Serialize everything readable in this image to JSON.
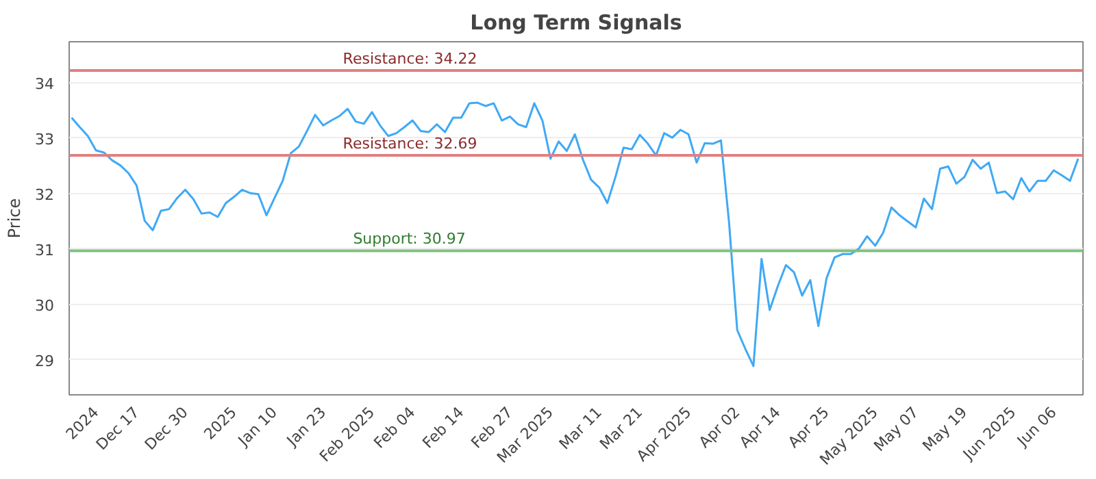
{
  "chart_data": {
    "type": "line",
    "title": "Long Term Signals",
    "ylabel": "Price",
    "categories": [
      null,
      null,
      null,
      "2024",
      null,
      null,
      null,
      null,
      "Dec 17",
      null,
      null,
      null,
      null,
      null,
      "Dec 30",
      null,
      null,
      null,
      null,
      null,
      "2025",
      null,
      null,
      null,
      null,
      "Jan 10",
      null,
      null,
      null,
      null,
      null,
      "Jan 23",
      null,
      null,
      null,
      null,
      null,
      "Feb 2025",
      null,
      null,
      null,
      null,
      "Feb 04",
      null,
      null,
      null,
      null,
      null,
      "Feb 14",
      null,
      null,
      null,
      null,
      null,
      "Feb 27",
      null,
      null,
      null,
      null,
      "Mar 2025",
      null,
      null,
      null,
      null,
      null,
      "Mar 11",
      null,
      null,
      null,
      null,
      "Mar 21",
      null,
      null,
      null,
      null,
      null,
      "Apr 2025",
      null,
      null,
      null,
      null,
      null,
      "Apr 02",
      null,
      null,
      null,
      null,
      "Apr 14",
      null,
      null,
      null,
      null,
      null,
      "Apr 25",
      null,
      null,
      null,
      null,
      null,
      "May 2025",
      null,
      null,
      null,
      null,
      "May 07",
      null,
      null,
      null,
      null,
      null,
      "May 19",
      null,
      null,
      null,
      null,
      null,
      "Jun 2025",
      null,
      null,
      null,
      null,
      "Jun 06",
      null,
      null,
      null
    ],
    "series": [
      {
        "color": "#3fa9f5",
        "values": [
          33.37,
          33.2,
          33.04,
          32.78,
          32.74,
          32.6,
          32.51,
          32.37,
          32.15,
          31.51,
          31.34,
          31.69,
          31.72,
          31.92,
          32.07,
          31.9,
          31.64,
          31.66,
          31.58,
          31.83,
          31.94,
          32.07,
          32.01,
          31.99,
          31.61,
          31.92,
          32.23,
          32.73,
          32.85,
          33.13,
          33.42,
          33.23,
          33.32,
          33.4,
          33.53,
          33.3,
          33.26,
          33.47,
          33.23,
          33.04,
          33.09,
          33.2,
          33.32,
          33.13,
          33.11,
          33.25,
          33.11,
          33.37,
          33.37,
          33.63,
          33.64,
          33.58,
          33.63,
          33.32,
          33.39,
          33.25,
          33.2,
          33.63,
          33.32,
          32.63,
          32.94,
          32.77,
          33.07,
          32.61,
          32.25,
          32.11,
          31.83,
          32.3,
          32.83,
          32.8,
          33.06,
          32.9,
          32.69,
          33.09,
          33.01,
          33.15,
          33.07,
          32.56,
          32.91,
          32.9,
          32.96,
          31.47,
          29.54,
          29.2,
          28.89,
          30.82,
          29.9,
          30.33,
          30.71,
          30.58,
          30.16,
          30.44,
          29.61,
          30.47,
          30.85,
          30.91,
          30.91,
          31.01,
          31.23,
          31.06,
          31.3,
          31.75,
          31.61,
          31.5,
          31.39,
          31.91,
          31.72,
          32.45,
          32.49,
          32.18,
          32.3,
          32.61,
          32.45,
          32.56,
          32.01,
          32.04,
          31.9,
          32.28,
          32.04,
          32.23,
          32.23,
          32.42,
          32.33,
          32.23,
          32.63
        ]
      }
    ],
    "ylim": [
      28.37,
      34.74
    ],
    "yticks": [
      29,
      30,
      31,
      32,
      33,
      34
    ],
    "grid": "y",
    "ref_lines": [
      {
        "axis": "y",
        "value": 34.22,
        "label": "Resistance: 34.22",
        "color": "#e08080"
      },
      {
        "axis": "y",
        "value": 32.69,
        "label": "Resistance: 32.69",
        "color": "#e08080"
      },
      {
        "axis": "y",
        "value": 30.97,
        "label": "Support: 30.97",
        "color": "#80c080"
      }
    ]
  }
}
